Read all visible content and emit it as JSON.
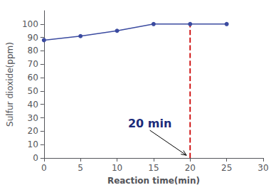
{
  "chart_data": {
    "type": "line",
    "x": [
      0,
      5,
      10,
      15,
      20,
      25
    ],
    "values": [
      88,
      91,
      95,
      100,
      100,
      100
    ],
    "color": "#3B4BA0",
    "marker": "circle",
    "xlabel": "Reaction time(min)",
    "ylabel": "Sulfur dioxide(ppm)",
    "xlim": [
      0,
      30
    ],
    "ylim": [
      0,
      110
    ],
    "xticks": [
      0,
      5,
      10,
      15,
      20,
      25,
      30
    ],
    "yticks": [
      0,
      10,
      20,
      30,
      40,
      50,
      60,
      70,
      80,
      90,
      100
    ],
    "grid": false,
    "vlines": [
      {
        "x": 20,
        "y": [
          0,
          100
        ],
        "color": "#CC0000",
        "line_style": "dashed"
      }
    ],
    "annotations": [
      {
        "text": "20 min",
        "x": 11.5,
        "y": 26,
        "arrow_x": 19.5,
        "arrow_y": 2
      }
    ]
  }
}
